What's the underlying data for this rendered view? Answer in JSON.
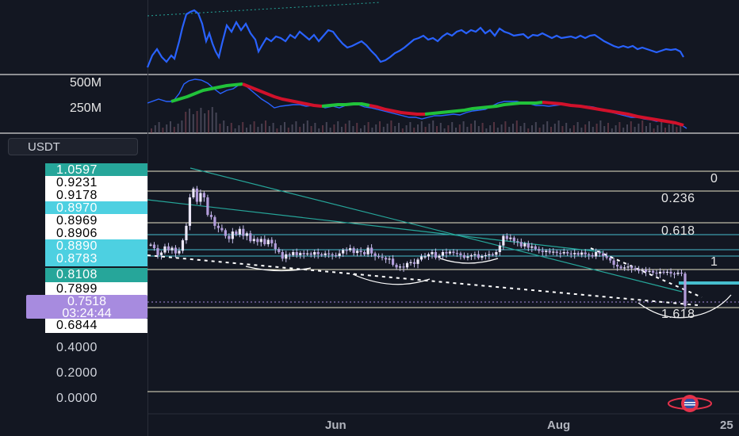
{
  "volume_pane": {
    "labels": [
      "500M",
      "250M"
    ]
  },
  "symbol_button": {
    "label": "USDT"
  },
  "price_labels": [
    {
      "text": "1.0597",
      "style": "g"
    },
    {
      "text": "0.9231",
      "style": "w"
    },
    {
      "text": "0.9178",
      "style": "w"
    },
    {
      "text": "0.8970",
      "style": "c"
    },
    {
      "text": "0.8969",
      "style": "w"
    },
    {
      "text": "0.8906",
      "style": "w"
    },
    {
      "text": "0.8890",
      "style": "c"
    },
    {
      "text": "0.8783",
      "style": "c"
    },
    {
      "text": "0.8108",
      "style": "g"
    },
    {
      "text": "0.7899",
      "style": "w"
    },
    {
      "text": "0.6844",
      "style": "w"
    },
    {
      "text": "0.4000",
      "style": "t"
    },
    {
      "text": "0.2000",
      "style": "t"
    },
    {
      "text": "0.0000",
      "style": "t"
    }
  ],
  "current_price": {
    "value": "0.7518",
    "countdown": "03:24:44"
  },
  "fib_levels": [
    "0",
    "0.236",
    "0.618",
    "1",
    "1.618"
  ],
  "time_labels": [
    "Jun",
    "Aug",
    "25"
  ],
  "colors": {
    "bg": "#131722",
    "indicator": "#2962ff",
    "ma_up": "#21c23a",
    "ma_down": "#d1112b",
    "fib_line": "#e9e6c8",
    "teal_line": "#26a69a",
    "candle": "#c9c2ee"
  },
  "chart_data": {
    "type": "candlestick",
    "candles_close": [
      0.892,
      0.884,
      0.868,
      0.874,
      0.888,
      0.879,
      0.885,
      0.872,
      0.878,
      0.902,
      0.935,
      1.0,
      1.02,
      0.99,
      1.01,
      1.0,
      0.96,
      0.955,
      0.935,
      0.93,
      0.925,
      0.912,
      0.905,
      0.922,
      0.915,
      0.928,
      0.912,
      0.918,
      0.9,
      0.905,
      0.898,
      0.905,
      0.893,
      0.903,
      0.895,
      0.882,
      0.875,
      0.86,
      0.87,
      0.868,
      0.875,
      0.868,
      0.873,
      0.87,
      0.872,
      0.869,
      0.875,
      0.87,
      0.868,
      0.872,
      0.87,
      0.868,
      0.866,
      0.872,
      0.88,
      0.879,
      0.884,
      0.873,
      0.878,
      0.875,
      0.87,
      0.885,
      0.872,
      0.866,
      0.864,
      0.862,
      0.858,
      0.86,
      0.846,
      0.84,
      0.842,
      0.84,
      0.85,
      0.852,
      0.848,
      0.858,
      0.865,
      0.865,
      0.87,
      0.875,
      0.862,
      0.867,
      0.875,
      0.872,
      0.876,
      0.873,
      0.872,
      0.868,
      0.862,
      0.865,
      0.868,
      0.87,
      0.862,
      0.866,
      0.868,
      0.87,
      0.869,
      0.875,
      0.89,
      0.912,
      0.905,
      0.908,
      0.9,
      0.898,
      0.888,
      0.895,
      0.885,
      0.888,
      0.882,
      0.878,
      0.875,
      0.878,
      0.874,
      0.876,
      0.873,
      0.872,
      0.875,
      0.872,
      0.87,
      0.873,
      0.869,
      0.874,
      0.87,
      0.868,
      0.865,
      0.875,
      0.872,
      0.866,
      0.862,
      0.856,
      0.846,
      0.842,
      0.838,
      0.84,
      0.842,
      0.838,
      0.835,
      0.832,
      0.835,
      0.83,
      0.832,
      0.828,
      0.826,
      0.83,
      0.828,
      0.83,
      0.826,
      0.825,
      0.828,
      0.826,
      0.752
    ],
    "fibonacci": {
      "levels": [
        0,
        0.236,
        0.618,
        1,
        1.618
      ]
    },
    "y_axis_ticks": [
      0.4,
      0.2,
      0.0
    ]
  }
}
